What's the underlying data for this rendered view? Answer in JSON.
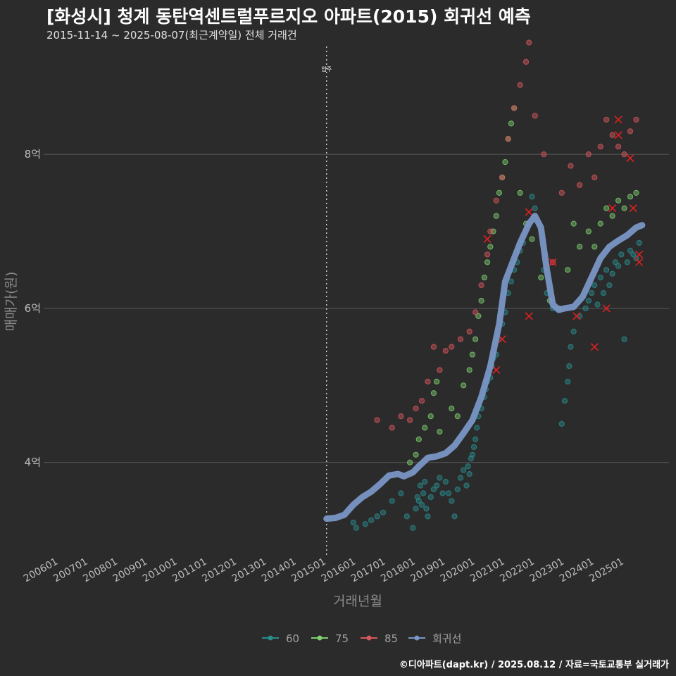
{
  "chart_data": {
    "type": "scatter",
    "title": "[화성시] 청계 동탄역센트럴푸르지오 아파트(2015) 회귀선 예측",
    "subtitle": "2015-11-14 ~ 2025-08-07(최근계약일) 전체 거래건",
    "xlabel": "거래년월",
    "ylabel": "매매가(원)",
    "x_ticks": [
      "200601",
      "200701",
      "200801",
      "200901",
      "201001",
      "201101",
      "201201",
      "201301",
      "201401",
      "201501",
      "201601",
      "201701",
      "201801",
      "201901",
      "202001",
      "202101",
      "202201",
      "202301",
      "202401",
      "202501"
    ],
    "y_ticks": [
      {
        "value": 4,
        "label": "4억"
      },
      {
        "value": 6,
        "label": "6억"
      },
      {
        "value": 8,
        "label": "8억"
      }
    ],
    "xlim": [
      "2005-06",
      "2025-12"
    ],
    "ylim": [
      2.8,
      9.4
    ],
    "grid": true,
    "legend_position": "bottom",
    "reference_line": {
      "x": "2015-01",
      "label": "입주"
    },
    "caption": "©디아파트(dapt.kr) / 2025.08.12 / 자료=국토교통부 실거래가",
    "series": [
      {
        "name": "60",
        "color": "#2a8c8c",
        "points": [
          [
            2015.9,
            3.22
          ],
          [
            2016.0,
            3.15
          ],
          [
            2016.3,
            3.2
          ],
          [
            2016.5,
            3.25
          ],
          [
            2016.7,
            3.3
          ],
          [
            2016.9,
            3.35
          ],
          [
            2017.2,
            3.5
          ],
          [
            2017.5,
            3.6
          ],
          [
            2017.7,
            3.3
          ],
          [
            2017.9,
            3.15
          ],
          [
            2018.0,
            3.4
          ],
          [
            2018.05,
            3.55
          ],
          [
            2018.1,
            3.5
          ],
          [
            2018.15,
            3.7
          ],
          [
            2018.2,
            3.45
          ],
          [
            2018.25,
            3.6
          ],
          [
            2018.3,
            3.75
          ],
          [
            2018.35,
            3.4
          ],
          [
            2018.4,
            3.3
          ],
          [
            2018.5,
            3.55
          ],
          [
            2018.6,
            3.65
          ],
          [
            2018.7,
            3.7
          ],
          [
            2018.8,
            3.8
          ],
          [
            2018.9,
            3.6
          ],
          [
            2019.0,
            3.75
          ],
          [
            2019.1,
            3.6
          ],
          [
            2019.2,
            3.5
          ],
          [
            2019.3,
            3.3
          ],
          [
            2019.4,
            3.65
          ],
          [
            2019.5,
            3.8
          ],
          [
            2019.6,
            3.9
          ],
          [
            2019.7,
            3.7
          ],
          [
            2019.75,
            3.95
          ],
          [
            2019.8,
            3.85
          ],
          [
            2019.85,
            4.05
          ],
          [
            2019.9,
            4.1
          ],
          [
            2019.95,
            4.2
          ],
          [
            2020.0,
            4.3
          ],
          [
            2020.05,
            4.45
          ],
          [
            2020.1,
            4.6
          ],
          [
            2020.2,
            4.7
          ],
          [
            2020.3,
            4.85
          ],
          [
            2020.35,
            4.95
          ],
          [
            2020.4,
            5.05
          ],
          [
            2020.5,
            5.1
          ],
          [
            2020.55,
            5.25
          ],
          [
            2020.6,
            5.35
          ],
          [
            2020.7,
            5.4
          ],
          [
            2020.8,
            5.6
          ],
          [
            2020.9,
            5.8
          ],
          [
            2021.0,
            5.95
          ],
          [
            2021.1,
            6.2
          ],
          [
            2021.2,
            6.35
          ],
          [
            2021.3,
            6.5
          ],
          [
            2021.4,
            6.6
          ],
          [
            2021.5,
            6.75
          ],
          [
            2021.6,
            6.85
          ],
          [
            2021.9,
            7.45
          ],
          [
            2022.0,
            7.3
          ],
          [
            2022.3,
            6.5
          ],
          [
            2022.4,
            6.2
          ],
          [
            2022.6,
            6.0
          ],
          [
            2022.9,
            4.5
          ],
          [
            2023.0,
            4.8
          ],
          [
            2023.1,
            5.05
          ],
          [
            2023.15,
            5.25
          ],
          [
            2023.2,
            5.5
          ],
          [
            2023.3,
            5.7
          ],
          [
            2023.5,
            5.9
          ],
          [
            2023.7,
            6.0
          ],
          [
            2023.8,
            6.1
          ],
          [
            2023.9,
            6.2
          ],
          [
            2024.0,
            6.3
          ],
          [
            2024.1,
            6.05
          ],
          [
            2024.2,
            6.4
          ],
          [
            2024.3,
            6.2
          ],
          [
            2024.4,
            6.5
          ],
          [
            2024.5,
            6.3
          ],
          [
            2024.6,
            6.45
          ],
          [
            2024.7,
            6.6
          ],
          [
            2024.8,
            6.55
          ],
          [
            2024.9,
            6.7
          ],
          [
            2025.0,
            5.6
          ],
          [
            2025.1,
            6.6
          ],
          [
            2025.2,
            6.75
          ],
          [
            2025.3,
            6.7
          ],
          [
            2025.4,
            6.65
          ],
          [
            2025.5,
            6.85
          ]
        ]
      },
      {
        "name": "75",
        "color": "#7fcf6e",
        "points": [
          [
            2017.8,
            4.0
          ],
          [
            2018.0,
            4.1
          ],
          [
            2018.1,
            4.3
          ],
          [
            2018.3,
            4.45
          ],
          [
            2018.5,
            4.6
          ],
          [
            2018.6,
            4.9
          ],
          [
            2018.7,
            5.05
          ],
          [
            2018.8,
            4.4
          ],
          [
            2019.2,
            4.7
          ],
          [
            2019.4,
            4.6
          ],
          [
            2019.6,
            5.0
          ],
          [
            2019.8,
            5.2
          ],
          [
            2019.9,
            5.4
          ],
          [
            2020.0,
            5.6
          ],
          [
            2020.1,
            5.9
          ],
          [
            2020.2,
            6.1
          ],
          [
            2020.3,
            6.4
          ],
          [
            2020.4,
            6.6
          ],
          [
            2020.5,
            6.8
          ],
          [
            2020.6,
            7.0
          ],
          [
            2020.7,
            7.2
          ],
          [
            2020.8,
            7.5
          ],
          [
            2020.9,
            7.7
          ],
          [
            2021.0,
            7.9
          ],
          [
            2021.1,
            8.2
          ],
          [
            2021.2,
            8.4
          ],
          [
            2021.3,
            8.6
          ],
          [
            2021.5,
            7.5
          ],
          [
            2021.7,
            7.1
          ],
          [
            2021.9,
            6.9
          ],
          [
            2022.2,
            6.4
          ],
          [
            2022.5,
            6.1
          ],
          [
            2022.8,
            6.0
          ],
          [
            2023.1,
            6.5
          ],
          [
            2023.3,
            7.1
          ],
          [
            2023.5,
            6.8
          ],
          [
            2023.8,
            7.0
          ],
          [
            2024.0,
            6.8
          ],
          [
            2024.2,
            7.1
          ],
          [
            2024.4,
            7.3
          ],
          [
            2024.6,
            7.2
          ],
          [
            2024.8,
            7.4
          ],
          [
            2025.0,
            7.3
          ],
          [
            2025.2,
            7.45
          ],
          [
            2025.4,
            7.5
          ]
        ]
      },
      {
        "name": "85",
        "color": "#d9575a",
        "points": [
          [
            2016.7,
            4.55
          ],
          [
            2017.2,
            4.45
          ],
          [
            2017.5,
            4.6
          ],
          [
            2017.8,
            4.55
          ],
          [
            2018.0,
            4.7
          ],
          [
            2018.2,
            4.8
          ],
          [
            2018.4,
            5.05
          ],
          [
            2018.6,
            5.5
          ],
          [
            2018.8,
            5.2
          ],
          [
            2019.0,
            5.45
          ],
          [
            2019.2,
            5.5
          ],
          [
            2019.5,
            5.6
          ],
          [
            2019.8,
            5.7
          ],
          [
            2020.0,
            5.95
          ],
          [
            2020.2,
            6.3
          ],
          [
            2020.4,
            6.7
          ],
          [
            2020.5,
            7.0
          ],
          [
            2020.7,
            7.4
          ],
          [
            2020.9,
            7.7
          ],
          [
            2021.1,
            8.2
          ],
          [
            2021.3,
            8.6
          ],
          [
            2021.5,
            8.9
          ],
          [
            2021.7,
            9.2
          ],
          [
            2021.8,
            9.45
          ],
          [
            2022.0,
            8.5
          ],
          [
            2022.3,
            8.0
          ],
          [
            2022.6,
            6.6
          ],
          [
            2022.9,
            7.5
          ],
          [
            2023.2,
            7.85
          ],
          [
            2023.5,
            7.6
          ],
          [
            2023.8,
            8.0
          ],
          [
            2024.0,
            7.7
          ],
          [
            2024.2,
            8.1
          ],
          [
            2024.4,
            8.45
          ],
          [
            2024.6,
            8.25
          ],
          [
            2024.8,
            8.1
          ],
          [
            2025.0,
            8.0
          ],
          [
            2025.2,
            8.3
          ],
          [
            2025.4,
            8.45
          ]
        ]
      }
    ],
    "crossed_points": [
      [
        2020.4,
        6.9
      ],
      [
        2021.8,
        7.25
      ],
      [
        2021.8,
        5.9
      ],
      [
        2022.6,
        6.6
      ],
      [
        2020.7,
        5.2
      ],
      [
        2020.9,
        5.6
      ],
      [
        2023.4,
        5.9
      ],
      [
        2024.0,
        5.5
      ],
      [
        2024.4,
        6.0
      ],
      [
        2024.6,
        7.3
      ],
      [
        2024.8,
        8.45
      ],
      [
        2024.8,
        8.25
      ],
      [
        2025.2,
        7.95
      ],
      [
        2025.3,
        7.3
      ],
      [
        2025.5,
        6.7
      ],
      [
        2025.5,
        6.6
      ]
    ],
    "regression": {
      "name": "회귀선",
      "color": "#7a96c6",
      "points": [
        [
          2015.0,
          3.27
        ],
        [
          2015.3,
          3.28
        ],
        [
          2015.6,
          3.32
        ],
        [
          2015.9,
          3.45
        ],
        [
          2016.2,
          3.55
        ],
        [
          2016.5,
          3.62
        ],
        [
          2016.8,
          3.72
        ],
        [
          2017.1,
          3.83
        ],
        [
          2017.4,
          3.85
        ],
        [
          2017.6,
          3.82
        ],
        [
          2017.9,
          3.87
        ],
        [
          2018.1,
          3.95
        ],
        [
          2018.4,
          4.06
        ],
        [
          2018.7,
          4.08
        ],
        [
          2019.0,
          4.12
        ],
        [
          2019.3,
          4.22
        ],
        [
          2019.6,
          4.38
        ],
        [
          2019.9,
          4.55
        ],
        [
          2020.2,
          4.85
        ],
        [
          2020.5,
          5.25
        ],
        [
          2020.8,
          5.8
        ],
        [
          2021.0,
          6.35
        ],
        [
          2021.2,
          6.55
        ],
        [
          2021.5,
          6.85
        ],
        [
          2021.8,
          7.1
        ],
        [
          2022.0,
          7.2
        ],
        [
          2022.2,
          7.05
        ],
        [
          2022.4,
          6.5
        ],
        [
          2022.6,
          6.05
        ],
        [
          2022.8,
          5.98
        ],
        [
          2023.0,
          6.0
        ],
        [
          2023.3,
          6.02
        ],
        [
          2023.6,
          6.15
        ],
        [
          2023.9,
          6.4
        ],
        [
          2024.2,
          6.65
        ],
        [
          2024.5,
          6.8
        ],
        [
          2024.8,
          6.88
        ],
        [
          2025.1,
          6.95
        ],
        [
          2025.4,
          7.05
        ],
        [
          2025.6,
          7.08
        ]
      ]
    }
  }
}
